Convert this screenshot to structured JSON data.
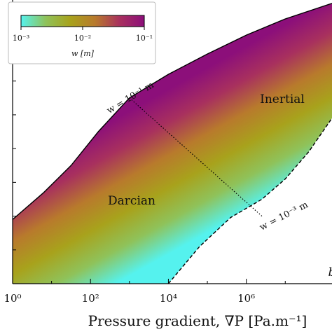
{
  "chart_data": {
    "type": "area",
    "xlabel": "Pressure gradient, ∇P [Pa.m⁻¹]",
    "x_scale": "log",
    "xlim_exp": [
      0,
      8.2
    ],
    "x_ticks": [
      {
        "exp": 0,
        "label": "10⁰"
      },
      {
        "exp": 2,
        "label": "10²"
      },
      {
        "exp": 4,
        "label": "10⁴"
      },
      {
        "exp": 6,
        "label": "10⁶"
      }
    ],
    "region_labels": [
      "Darcian",
      "Inertial"
    ],
    "curves": [
      {
        "label": "w = 10⁻¹ m",
        "style": "solid",
        "x_exp": [
          0,
          0.8,
          1.5,
          2.2,
          3.0,
          4.0,
          5.0,
          6.0,
          7.0,
          8.2
        ],
        "y": [
          0.95,
          1.35,
          1.75,
          2.25,
          2.75,
          3.1,
          3.4,
          3.68,
          3.92,
          4.15
        ]
      },
      {
        "label": "w = 10⁻³ m",
        "style": "dashed",
        "x_exp": [
          4.0,
          4.8,
          5.6,
          6.4,
          7.0,
          7.6,
          8.2
        ],
        "y": [
          0.0,
          0.55,
          0.98,
          1.25,
          1.55,
          1.95,
          2.45
        ]
      }
    ],
    "ylim": [
      0,
      4.2
    ],
    "transition_line": {
      "style": "dotted",
      "from": {
        "x_exp": 3.0,
        "y": 2.75
      },
      "to": {
        "x_exp": 6.4,
        "y": 1.0
      }
    },
    "colorbar": {
      "label": "w [m]",
      "scale": "log",
      "ticks": [
        "10⁻³",
        "10⁻²",
        "10⁻¹"
      ],
      "colors": [
        "#55f2ee",
        "#8fc25a",
        "#a8a21c",
        "#b87a2c",
        "#a8305e",
        "#8c0f7a"
      ]
    },
    "edge_label": "b"
  }
}
